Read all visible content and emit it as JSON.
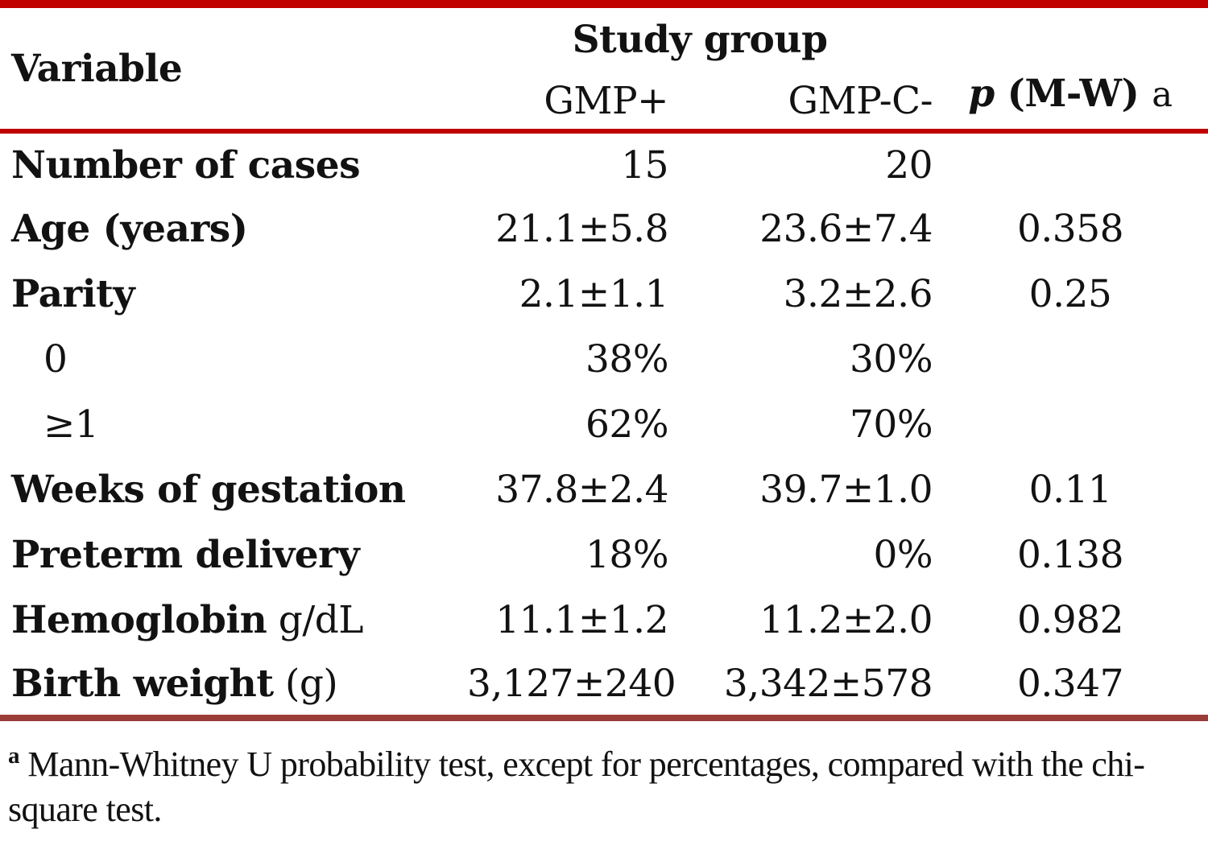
{
  "table": {
    "header": {
      "variable": "Variable",
      "study_group": "Study group",
      "group1": "GMP+",
      "group2": "GMP-C-",
      "p_italic": "p",
      "p_rest": "(M-W)",
      "p_marker": "a"
    },
    "rows": [
      {
        "label": "Number of cases",
        "suffix": "",
        "gmp_plus": "15",
        "gmp_c": "20",
        "p": ""
      },
      {
        "label": "Age (years)",
        "suffix": "",
        "gmp_plus": "21.1±5.8",
        "gmp_c": "23.6±7.4",
        "p": "0.358"
      },
      {
        "label": "Parity",
        "suffix": "",
        "gmp_plus": "2.1±1.1",
        "gmp_c": "3.2±2.6",
        "p": "0.25"
      },
      {
        "label": "0",
        "suffix": "",
        "gmp_plus": "38%",
        "gmp_c": "30%",
        "p": ""
      },
      {
        "label": "≥1",
        "suffix": "",
        "gmp_plus": "62%",
        "gmp_c": "70%",
        "p": ""
      },
      {
        "label": "Weeks of gestation",
        "suffix": "",
        "gmp_plus": "37.8±2.4",
        "gmp_c": "39.7±1.0",
        "p": "0.11"
      },
      {
        "label": "Preterm delivery",
        "suffix": "",
        "gmp_plus": "18%",
        "gmp_c": "0%",
        "p": "0.138"
      },
      {
        "label": "Hemoglobin",
        "suffix": " g/dL",
        "gmp_plus": "11.1±1.2",
        "gmp_c": "11.2±2.0",
        "p": "0.982"
      },
      {
        "label": "Birth weight",
        "suffix": " (g)",
        "gmp_plus": "3,127±240",
        "gmp_c": "3,342±578",
        "p": "0.347"
      }
    ]
  },
  "footnote": {
    "marker": "a",
    "text": "Mann-Whitney U probability test, except for percentages, compared with the chi-square test."
  },
  "colors": {
    "top_rule": "#c00000",
    "header_rule": "#c00000",
    "bottom_rule": "#9a3c38",
    "text": "#121212"
  }
}
